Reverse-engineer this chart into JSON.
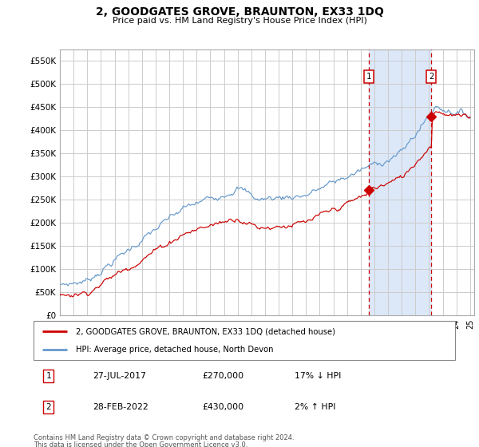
{
  "title": "2, GOODGATES GROVE, BRAUNTON, EX33 1DQ",
  "subtitle": "Price paid vs. HM Land Registry's House Price Index (HPI)",
  "ylabel_ticks": [
    "£0",
    "£50K",
    "£100K",
    "£150K",
    "£200K",
    "£250K",
    "£300K",
    "£350K",
    "£400K",
    "£450K",
    "£500K",
    "£550K"
  ],
  "ytick_vals": [
    0,
    50000,
    100000,
    150000,
    200000,
    250000,
    300000,
    350000,
    400000,
    450000,
    500000,
    550000
  ],
  "ylim": [
    0,
    575000
  ],
  "xlim_start": 1995.0,
  "xlim_end": 2025.3,
  "sale1_x": 2017.57,
  "sale1_y": 270000,
  "sale1_label": "1",
  "sale2_x": 2022.16,
  "sale2_y": 430000,
  "sale2_label": "2",
  "legend_line1": "2, GOODGATES GROVE, BRAUNTON, EX33 1DQ (detached house)",
  "legend_line2": "HPI: Average price, detached house, North Devon",
  "footnote1": "Contains HM Land Registry data © Crown copyright and database right 2024.",
  "footnote2": "This data is licensed under the Open Government Licence v3.0.",
  "table_row1": [
    "1",
    "27-JUL-2017",
    "£270,000",
    "17% ↓ HPI"
  ],
  "table_row2": [
    "2",
    "28-FEB-2022",
    "£430,000",
    "2% ↑ HPI"
  ],
  "red_color": "#cc0000",
  "blue_color": "#6699cc",
  "background_color": "#ffffff",
  "grid_color": "#cccccc",
  "shaded_region_color": "#dce8f8"
}
